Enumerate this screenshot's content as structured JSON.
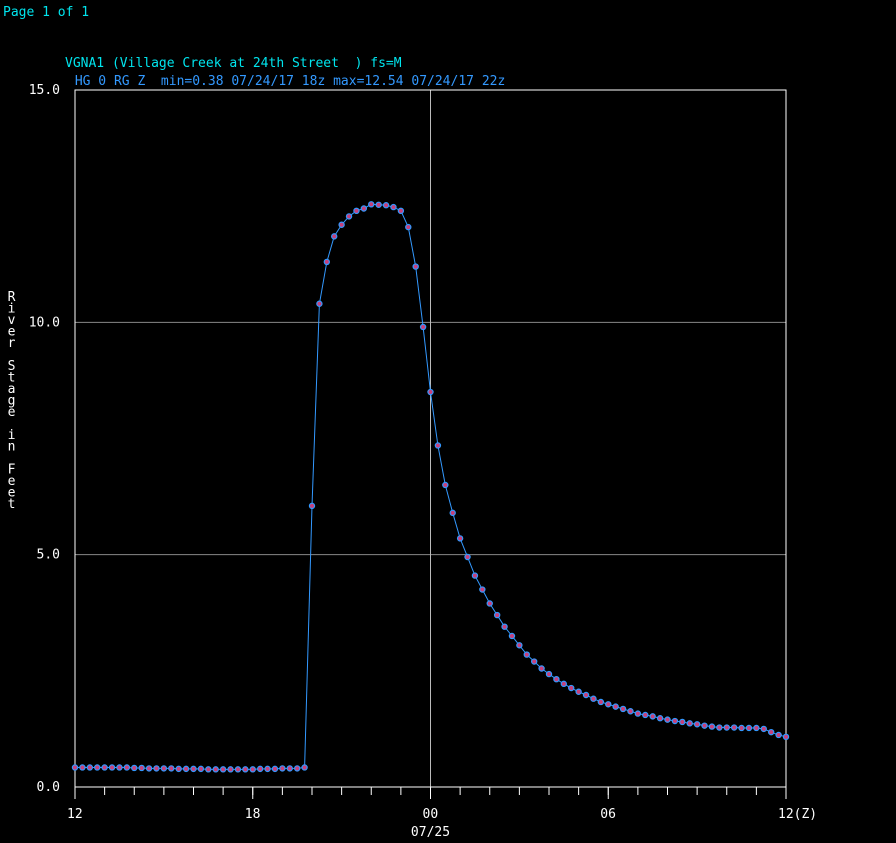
{
  "page_label": "Page 1 of 1",
  "chart_data": {
    "type": "line",
    "title": "VGNA1 (Village Creek at 24th Street  ) fs=M",
    "subtitle": " HG 0 RG Z  min=0.38 07/24/17 18z max=12.54 07/24/17 22z",
    "y_label": "River Stage in Feet",
    "xlim": [
      0,
      24
    ],
    "ylim": [
      0,
      15
    ],
    "xticks": [
      {
        "value": 0,
        "label": "12"
      },
      {
        "value": 6,
        "label": "18"
      },
      {
        "value": 12,
        "label": "00"
      },
      {
        "value": 18,
        "label": "06"
      },
      {
        "value": 24,
        "label": "12(Z)"
      }
    ],
    "x_gridline": {
      "value": 12,
      "label": "07/25"
    },
    "yticks": [
      {
        "value": 0,
        "label": "0.0"
      },
      {
        "value": 5,
        "label": "5.0"
      },
      {
        "value": 10,
        "label": "10.0"
      },
      {
        "value": 15,
        "label": "15.0"
      }
    ],
    "grid": true,
    "series": [
      {
        "name": "HG",
        "color": "#3399ff",
        "marker_color": "#c8407a",
        "x": [
          0,
          0.25,
          0.5,
          0.75,
          1,
          1.25,
          1.5,
          1.75,
          2,
          2.25,
          2.5,
          2.75,
          3,
          3.25,
          3.5,
          3.75,
          4,
          4.25,
          4.5,
          4.75,
          5,
          5.25,
          5.5,
          5.75,
          6,
          6.25,
          6.5,
          6.75,
          7,
          7.25,
          7.5,
          7.75,
          8,
          8.25,
          8.5,
          8.75,
          9,
          9.25,
          9.5,
          9.75,
          10,
          10.25,
          10.5,
          10.75,
          11,
          11.25,
          11.5,
          11.75,
          12,
          12.25,
          12.5,
          12.75,
          13,
          13.25,
          13.5,
          13.75,
          14,
          14.25,
          14.5,
          14.75,
          15,
          15.25,
          15.5,
          15.75,
          16,
          16.25,
          16.5,
          16.75,
          17,
          17.25,
          17.5,
          17.75,
          18,
          18.25,
          18.5,
          18.75,
          19,
          19.25,
          19.5,
          19.75,
          20,
          20.25,
          20.5,
          20.75,
          21,
          21.25,
          21.5,
          21.75,
          22,
          22.25,
          22.5,
          22.75,
          23,
          23.25,
          23.5,
          23.75,
          24
        ],
        "values": [
          0.42,
          0.42,
          0.42,
          0.42,
          0.42,
          0.42,
          0.42,
          0.42,
          0.41,
          0.41,
          0.4,
          0.4,
          0.4,
          0.4,
          0.39,
          0.39,
          0.39,
          0.39,
          0.38,
          0.38,
          0.38,
          0.38,
          0.38,
          0.38,
          0.38,
          0.39,
          0.39,
          0.39,
          0.4,
          0.4,
          0.4,
          0.42,
          6.05,
          10.4,
          11.3,
          11.85,
          12.1,
          12.28,
          12.4,
          12.45,
          12.54,
          12.53,
          12.52,
          12.48,
          12.4,
          12.05,
          11.2,
          9.9,
          8.5,
          7.35,
          6.5,
          5.9,
          5.35,
          4.95,
          4.55,
          4.25,
          3.95,
          3.7,
          3.45,
          3.25,
          3.05,
          2.85,
          2.7,
          2.55,
          2.43,
          2.32,
          2.22,
          2.13,
          2.05,
          1.98,
          1.9,
          1.83,
          1.78,
          1.73,
          1.68,
          1.63,
          1.58,
          1.55,
          1.52,
          1.48,
          1.45,
          1.42,
          1.4,
          1.37,
          1.35,
          1.32,
          1.3,
          1.28,
          1.28,
          1.28,
          1.27,
          1.27,
          1.27,
          1.25,
          1.18,
          1.12,
          1.08
        ]
      }
    ]
  }
}
